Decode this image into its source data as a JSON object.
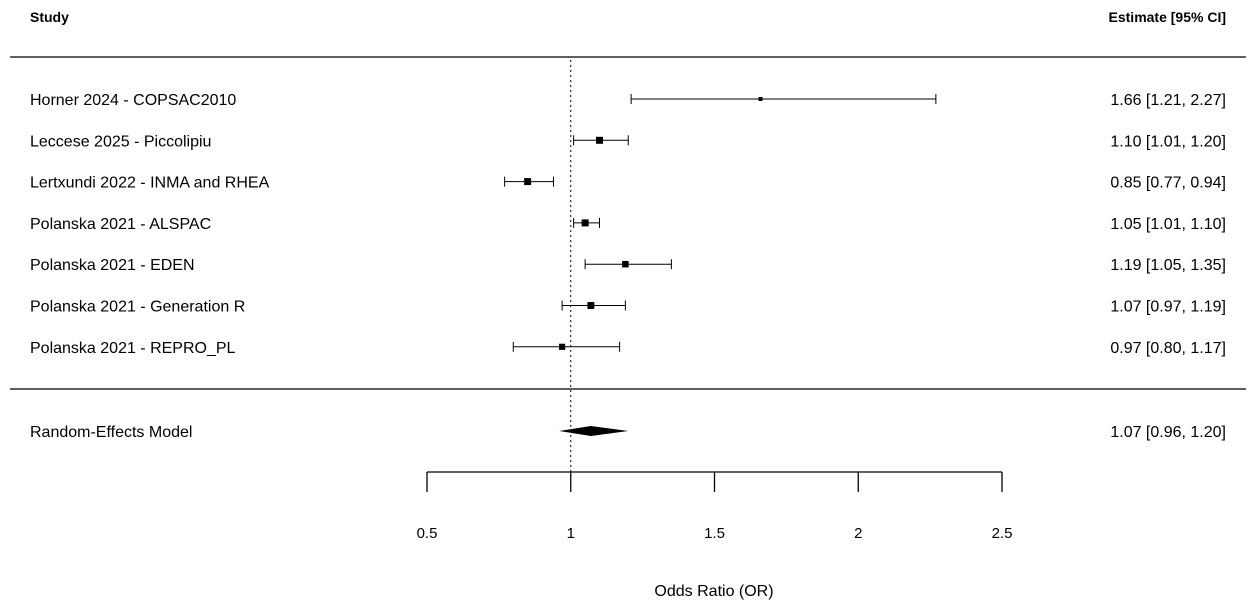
{
  "chart_data": {
    "type": "forest",
    "header_left": "Study",
    "header_right": "Estimate [95% CI]",
    "xlabel": "Odds Ratio (OR)",
    "xlim": [
      0.5,
      2.5
    ],
    "xticks": [
      "0.5",
      "1",
      "1.5",
      "2",
      "2.5"
    ],
    "reference_line": 1,
    "studies": [
      {
        "name": "Horner 2024 - COPSAC2010",
        "estimate": 1.66,
        "lower": 1.21,
        "upper": 2.27,
        "text": "1.66 [1.21, 2.27]"
      },
      {
        "name": "Leccese 2025 - Piccolipiu",
        "estimate": 1.1,
        "lower": 1.01,
        "upper": 1.2,
        "text": "1.10 [1.01, 1.20]"
      },
      {
        "name": "Lertxundi 2022 - INMA and RHEA",
        "estimate": 0.85,
        "lower": 0.77,
        "upper": 0.94,
        "text": "0.85 [0.77, 0.94]"
      },
      {
        "name": "Polanska 2021 - ALSPAC",
        "estimate": 1.05,
        "lower": 1.01,
        "upper": 1.1,
        "text": "1.05 [1.01, 1.10]"
      },
      {
        "name": "Polanska 2021 - EDEN",
        "estimate": 1.19,
        "lower": 1.05,
        "upper": 1.35,
        "text": "1.19 [1.05, 1.35]"
      },
      {
        "name": "Polanska 2021 - Generation R",
        "estimate": 1.07,
        "lower": 0.97,
        "upper": 1.19,
        "text": "1.07 [0.97, 1.19]"
      },
      {
        "name": "Polanska 2021 - REPRO_PL",
        "estimate": 0.97,
        "lower": 0.8,
        "upper": 1.17,
        "text": "0.97 [0.80, 1.17]"
      }
    ],
    "summary": {
      "name": "Random-Effects Model",
      "estimate": 1.07,
      "lower": 0.96,
      "upper": 1.2,
      "text": "1.07 [0.96, 1.20]"
    }
  }
}
